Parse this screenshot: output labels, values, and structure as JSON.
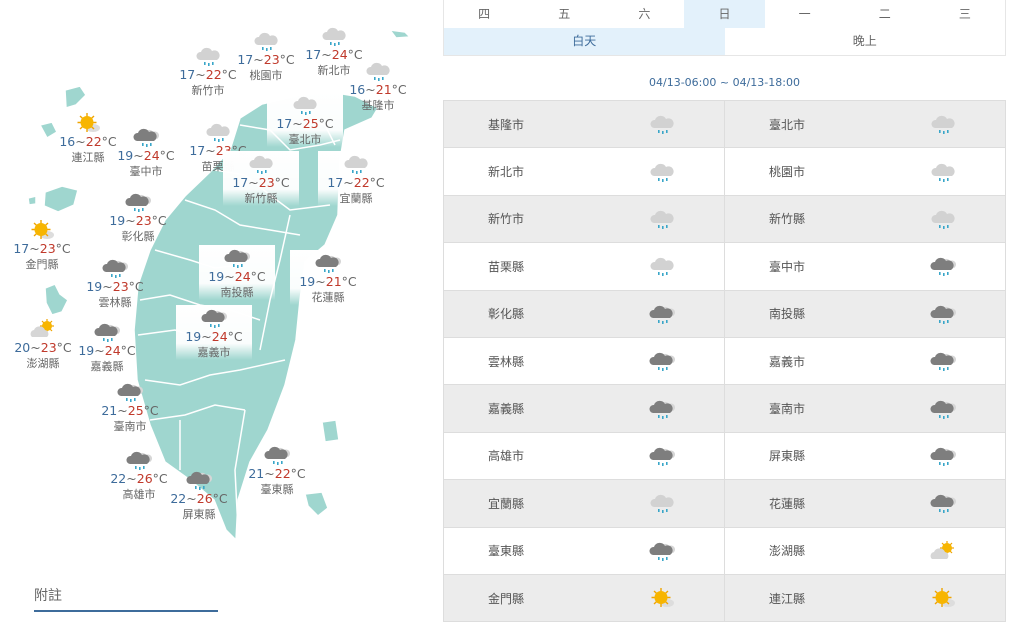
{
  "colors": {
    "land": "#9fd6cf",
    "accent": "#3e6c9b",
    "selected_tab": "#e3f1fb",
    "low_temp": "#3e6c9b",
    "high_temp": "#c0392b"
  },
  "unit": "°C",
  "map": [
    {
      "name": "新竹市",
      "low": "17",
      "high": "22",
      "icon": "light-rain"
    },
    {
      "name": "桃園市",
      "low": "17",
      "high": "23",
      "icon": "light-rain"
    },
    {
      "name": "新北市",
      "low": "17",
      "high": "24",
      "icon": "light-rain"
    },
    {
      "name": "基隆市",
      "low": "16",
      "high": "21",
      "icon": "light-rain"
    },
    {
      "name": "連江縣",
      "low": "16",
      "high": "22",
      "icon": "sunny"
    },
    {
      "name": "臺中市",
      "low": "19",
      "high": "24",
      "icon": "rain"
    },
    {
      "name": "苗栗縣",
      "low": "17",
      "high": "23",
      "icon": "light-rain"
    },
    {
      "name": "臺北市",
      "low": "17",
      "high": "25",
      "icon": "light-rain"
    },
    {
      "name": "新竹縣",
      "low": "17",
      "high": "23",
      "icon": "light-rain"
    },
    {
      "name": "宜蘭縣",
      "low": "17",
      "high": "22",
      "icon": "light-rain"
    },
    {
      "name": "彰化縣",
      "low": "19",
      "high": "23",
      "icon": "rain"
    },
    {
      "name": "金門縣",
      "low": "17",
      "high": "23",
      "icon": "sunny"
    },
    {
      "name": "南投縣",
      "low": "19",
      "high": "24",
      "icon": "rain"
    },
    {
      "name": "花蓮縣",
      "low": "19",
      "high": "21",
      "icon": "rain"
    },
    {
      "name": "雲林縣",
      "low": "19",
      "high": "23",
      "icon": "rain"
    },
    {
      "name": "嘉義市",
      "low": "19",
      "high": "24",
      "icon": "rain"
    },
    {
      "name": "澎湖縣",
      "low": "20",
      "high": "23",
      "icon": "partly-cloudy"
    },
    {
      "name": "嘉義縣",
      "low": "19",
      "high": "24",
      "icon": "rain"
    },
    {
      "name": "臺南市",
      "low": "21",
      "high": "25",
      "icon": "rain"
    },
    {
      "name": "高雄市",
      "low": "22",
      "high": "26",
      "icon": "rain"
    },
    {
      "name": "屏東縣",
      "low": "22",
      "high": "26",
      "icon": "rain"
    },
    {
      "name": "臺東縣",
      "low": "21",
      "high": "22",
      "icon": "rain"
    }
  ],
  "note_label": "附註",
  "days": [
    "四",
    "五",
    "六",
    "日",
    "一",
    "二",
    "三"
  ],
  "selected_day": "日",
  "periods": [
    "白天",
    "晚上"
  ],
  "selected_period": "白天",
  "range": "04/13-06:00 ~ 04/13-18:00",
  "table": [
    [
      {
        "name": "基隆市",
        "icon": "light-rain"
      },
      {
        "name": "臺北市",
        "icon": "light-rain"
      }
    ],
    [
      {
        "name": "新北市",
        "icon": "light-rain"
      },
      {
        "name": "桃園市",
        "icon": "light-rain"
      }
    ],
    [
      {
        "name": "新竹市",
        "icon": "light-rain"
      },
      {
        "name": "新竹縣",
        "icon": "light-rain"
      }
    ],
    [
      {
        "name": "苗栗縣",
        "icon": "light-rain"
      },
      {
        "name": "臺中市",
        "icon": "rain"
      }
    ],
    [
      {
        "name": "彰化縣",
        "icon": "rain"
      },
      {
        "name": "南投縣",
        "icon": "rain"
      }
    ],
    [
      {
        "name": "雲林縣",
        "icon": "rain"
      },
      {
        "name": "嘉義市",
        "icon": "rain"
      }
    ],
    [
      {
        "name": "嘉義縣",
        "icon": "rain"
      },
      {
        "name": "臺南市",
        "icon": "rain"
      }
    ],
    [
      {
        "name": "高雄市",
        "icon": "rain"
      },
      {
        "name": "屏東縣",
        "icon": "rain"
      }
    ],
    [
      {
        "name": "宜蘭縣",
        "icon": "light-rain"
      },
      {
        "name": "花蓮縣",
        "icon": "rain"
      }
    ],
    [
      {
        "name": "臺東縣",
        "icon": "rain"
      },
      {
        "name": "澎湖縣",
        "icon": "partly-cloudy"
      }
    ],
    [
      {
        "name": "金門縣",
        "icon": "sunny"
      },
      {
        "name": "連江縣",
        "icon": "sunny"
      }
    ]
  ]
}
